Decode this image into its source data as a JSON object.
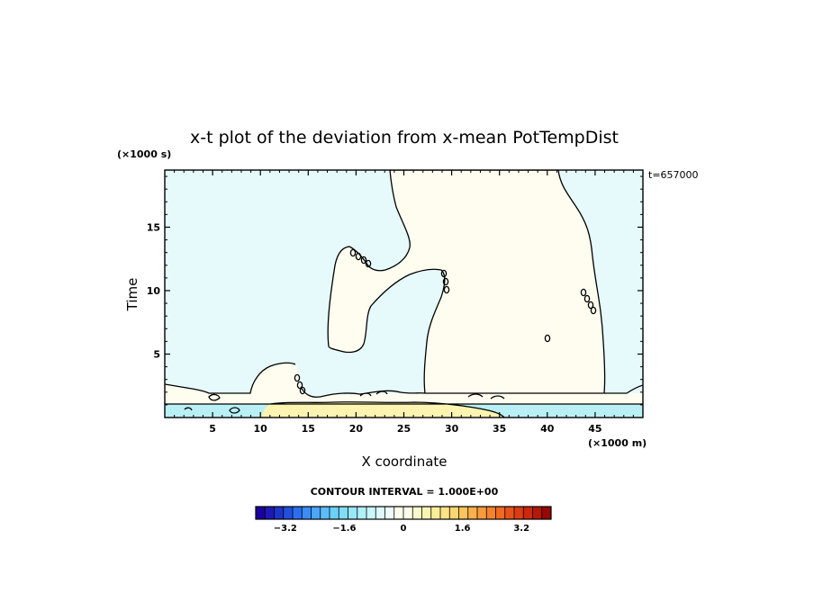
{
  "chart_data": {
    "type": "heatmap",
    "title": "x-t plot of the deviation from x-mean PotTempDist",
    "xlabel": "X coordinate",
    "ylabel": "Time",
    "x_unit": "(×1000 m)",
    "y_unit": "(×1000 s)",
    "time_stamp": "t=657000",
    "xlim": [
      0,
      50
    ],
    "ylim": [
      0,
      19.5
    ],
    "x_ticks": [
      {
        "value": 5,
        "label": "5"
      },
      {
        "value": 10,
        "label": "10"
      },
      {
        "value": 15,
        "label": "15"
      },
      {
        "value": 20,
        "label": "20"
      },
      {
        "value": 25,
        "label": "25"
      },
      {
        "value": 30,
        "label": "30"
      },
      {
        "value": 35,
        "label": "35"
      },
      {
        "value": 40,
        "label": "40"
      },
      {
        "value": 45,
        "label": "45"
      }
    ],
    "y_ticks": [
      {
        "value": 5,
        "label": "5"
      },
      {
        "value": 10,
        "label": "10"
      },
      {
        "value": 15,
        "label": "15"
      }
    ],
    "contour_interval_text": "CONTOUR INTERVAL = 1.000E+00",
    "colorbar": {
      "min": -4,
      "max": 4,
      "tick_values": [
        -3.2,
        -1.6,
        0,
        1.6,
        3.2
      ],
      "tick_labels": [
        "−3.2",
        "−1.6",
        "0",
        "1.6",
        "3.2"
      ],
      "colors": [
        "#1a00a0",
        "#1d1ab4",
        "#1f33c8",
        "#2250dc",
        "#2b6ff0",
        "#3a8cf8",
        "#4ba6fc",
        "#5cbcfc",
        "#6cd0fc",
        "#80def8",
        "#98e8f8",
        "#b0f0f8",
        "#c8f6fa",
        "#ddfafb",
        "#eefcfc",
        "#fffff0",
        "#fefce8",
        "#fdf8cc",
        "#fcf4b0",
        "#fcee98",
        "#fce484",
        "#fcd670",
        "#fcc45c",
        "#fcb04a",
        "#fa9a3a",
        "#f6822c",
        "#f06a22",
        "#e8521a",
        "#dc3c12",
        "#cc280c",
        "#b41808",
        "#960804"
      ]
    },
    "regions": [
      {
        "name": "negative-deviation",
        "value": -0.5,
        "color": "#e6fafc"
      },
      {
        "name": "positive-deviation",
        "value": 0.5,
        "color": "#fffdf0"
      },
      {
        "name": "strong-negative-band",
        "value": -1.5,
        "color": "#b8f0f6"
      },
      {
        "name": "strong-positive-band",
        "value": 1.5,
        "color": "#fcf4b0"
      }
    ]
  }
}
